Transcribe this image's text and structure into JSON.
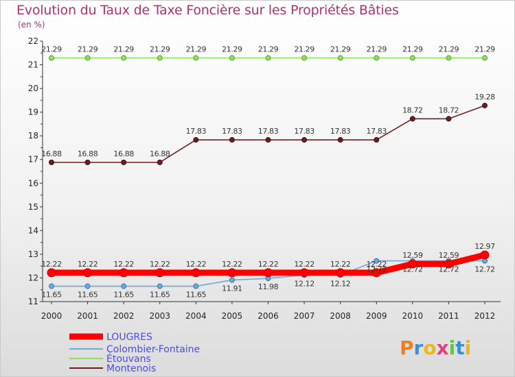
{
  "chart_data": {
    "type": "line",
    "title": "Evolution du Taux de Taxe Foncière sur les Propriétés Bâties",
    "ylabel": "(en %)",
    "xlabel": "",
    "x": [
      "2000",
      "2001",
      "2002",
      "2003",
      "2004",
      "2005",
      "2006",
      "2007",
      "2008",
      "2009",
      "2010",
      "2011",
      "2012"
    ],
    "yticks": [
      11,
      12,
      13,
      14,
      15,
      16,
      17,
      18,
      19,
      20,
      21,
      22
    ],
    "ylim": [
      11,
      22
    ],
    "grid": false,
    "legend_position": "bottom-left",
    "series": [
      {
        "name": "LOUGRES",
        "color": "#ff0000",
        "values": [
          12.22,
          12.22,
          12.22,
          12.22,
          12.22,
          12.22,
          12.22,
          12.22,
          12.22,
          12.22,
          12.59,
          12.59,
          12.97
        ]
      },
      {
        "name": "Colombier-Fontaine",
        "color": "#6fa8d8",
        "values": [
          11.65,
          11.65,
          11.65,
          11.65,
          11.65,
          11.91,
          11.98,
          12.12,
          12.12,
          12.72,
          12.72,
          12.72,
          12.72
        ]
      },
      {
        "name": "Étouvans",
        "color": "#90e060",
        "values": [
          21.29,
          21.29,
          21.29,
          21.29,
          21.29,
          21.29,
          21.29,
          21.29,
          21.29,
          21.29,
          21.29,
          21.29,
          21.29
        ]
      },
      {
        "name": "Montenois",
        "color": "#6b1f1f",
        "values": [
          16.88,
          16.88,
          16.88,
          16.88,
          17.83,
          17.83,
          17.83,
          17.83,
          17.83,
          17.83,
          18.72,
          18.72,
          19.28
        ]
      }
    ]
  },
  "brand": {
    "text": "Proxiti"
  }
}
